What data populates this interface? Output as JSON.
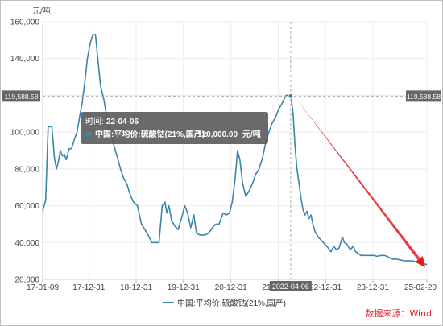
{
  "chart_data": {
    "type": "line",
    "yunit": "元/吨",
    "ylim": [
      20000,
      160000
    ],
    "yticks": [
      "160,000",
      "140,000",
      "120,000",
      "100,000",
      "80,000",
      "60,000",
      "40,000",
      "20,000"
    ],
    "ytick_values": [
      160000,
      140000,
      120000,
      100000,
      80000,
      60000,
      40000,
      20000
    ],
    "xticks": [
      "17-01-09",
      "17-12-31",
      "18-12-31",
      "19-12-31",
      "20-12-31",
      "21-12-31",
      "22-12-31",
      "23-12-31",
      "25-02-20"
    ],
    "xtick_dates": [
      "2017-01-09",
      "2017-12-31",
      "2018-12-31",
      "2019-12-31",
      "2020-12-31",
      "2021-12-31",
      "2022-12-31",
      "2023-12-31",
      "2025-02-20"
    ],
    "grid": true,
    "legend_position": "bottom",
    "series": [
      {
        "name": "中国:平均价:硫酸钴(21%,国产)",
        "color": "#3a86a8",
        "points": [
          [
            "2017-01-09",
            57000
          ],
          [
            "2017-02-01",
            63000
          ],
          [
            "2017-02-20",
            103000
          ],
          [
            "2017-03-20",
            103000
          ],
          [
            "2017-04-10",
            86000
          ],
          [
            "2017-04-25",
            80000
          ],
          [
            "2017-05-10",
            84000
          ],
          [
            "2017-05-25",
            90000
          ],
          [
            "2017-06-10",
            87000
          ],
          [
            "2017-06-25",
            88000
          ],
          [
            "2017-07-10",
            85000
          ],
          [
            "2017-08-01",
            91000
          ],
          [
            "2017-08-20",
            91000
          ],
          [
            "2017-09-10",
            96000
          ],
          [
            "2017-10-01",
            100000
          ],
          [
            "2017-10-20",
            108000
          ],
          [
            "2017-11-10",
            116000
          ],
          [
            "2017-12-01",
            128000
          ],
          [
            "2017-12-20",
            140000
          ],
          [
            "2018-01-10",
            148000
          ],
          [
            "2018-01-31",
            153000
          ],
          [
            "2018-02-20",
            153000
          ],
          [
            "2018-03-10",
            140000
          ],
          [
            "2018-04-01",
            125000
          ],
          [
            "2018-04-25",
            118000
          ],
          [
            "2018-05-15",
            110000
          ],
          [
            "2018-06-05",
            102000
          ],
          [
            "2018-06-25",
            98000
          ],
          [
            "2018-07-15",
            92000
          ],
          [
            "2018-08-10",
            86000
          ],
          [
            "2018-09-01",
            80000
          ],
          [
            "2018-09-25",
            75000
          ],
          [
            "2018-10-20",
            72000
          ],
          [
            "2018-11-15",
            66000
          ],
          [
            "2018-12-10",
            62000
          ],
          [
            "2019-01-10",
            60000
          ],
          [
            "2019-02-10",
            50000
          ],
          [
            "2019-03-10",
            47000
          ],
          [
            "2019-04-10",
            43000
          ],
          [
            "2019-05-01",
            40000
          ],
          [
            "2019-06-01",
            40000
          ],
          [
            "2019-06-25",
            40000
          ],
          [
            "2019-07-20",
            60000
          ],
          [
            "2019-08-10",
            62000
          ],
          [
            "2019-08-25",
            56000
          ],
          [
            "2019-09-10",
            60000
          ],
          [
            "2019-10-01",
            52000
          ],
          [
            "2019-10-25",
            49000
          ],
          [
            "2019-11-20",
            47000
          ],
          [
            "2019-12-15",
            53000
          ],
          [
            "2020-01-10",
            60000
          ],
          [
            "2020-02-01",
            56000
          ],
          [
            "2020-02-25",
            48000
          ],
          [
            "2020-03-20",
            55000
          ],
          [
            "2020-04-10",
            45000
          ],
          [
            "2020-05-10",
            44000
          ],
          [
            "2020-06-10",
            44000
          ],
          [
            "2020-07-10",
            45000
          ],
          [
            "2020-08-10",
            48000
          ],
          [
            "2020-09-05",
            50000
          ],
          [
            "2020-10-01",
            50000
          ],
          [
            "2020-11-01",
            56000
          ],
          [
            "2020-11-25",
            55000
          ],
          [
            "2020-12-20",
            56000
          ],
          [
            "2021-01-10",
            62000
          ],
          [
            "2021-02-01",
            74000
          ],
          [
            "2021-02-20",
            90000
          ],
          [
            "2021-03-10",
            85000
          ],
          [
            "2021-04-01",
            72000
          ],
          [
            "2021-04-25",
            65000
          ],
          [
            "2021-05-20",
            68000
          ],
          [
            "2021-06-15",
            72000
          ],
          [
            "2021-07-10",
            77000
          ],
          [
            "2021-08-05",
            80000
          ],
          [
            "2021-09-01",
            86000
          ],
          [
            "2021-09-25",
            94000
          ],
          [
            "2021-10-20",
            100000
          ],
          [
            "2021-11-15",
            105000
          ],
          [
            "2021-12-10",
            108000
          ],
          [
            "2022-01-01",
            112000
          ],
          [
            "2022-02-01",
            116000
          ],
          [
            "2022-03-01",
            120000
          ],
          [
            "2022-04-06",
            120000
          ],
          [
            "2022-04-25",
            110000
          ],
          [
            "2022-05-10",
            92000
          ],
          [
            "2022-05-25",
            80000
          ],
          [
            "2022-06-10",
            72000
          ],
          [
            "2022-06-25",
            64000
          ],
          [
            "2022-07-10",
            58000
          ],
          [
            "2022-07-25",
            55000
          ],
          [
            "2022-08-10",
            57000
          ],
          [
            "2022-08-25",
            53000
          ],
          [
            "2022-09-10",
            55000
          ],
          [
            "2022-09-25",
            50000
          ],
          [
            "2022-10-10",
            46000
          ],
          [
            "2022-11-05",
            43000
          ],
          [
            "2022-12-01",
            41000
          ],
          [
            "2023-01-10",
            38000
          ],
          [
            "2023-02-10",
            35000
          ],
          [
            "2023-03-05",
            38000
          ],
          [
            "2023-03-25",
            36000
          ],
          [
            "2023-04-15",
            37000
          ],
          [
            "2023-05-10",
            43000
          ],
          [
            "2023-05-25",
            40000
          ],
          [
            "2023-06-15",
            39000
          ],
          [
            "2023-07-10",
            36000
          ],
          [
            "2023-08-01",
            38000
          ],
          [
            "2023-08-20",
            35000
          ],
          [
            "2023-09-10",
            34000
          ],
          [
            "2023-10-01",
            33000
          ],
          [
            "2023-11-01",
            33000
          ],
          [
            "2023-12-01",
            33000
          ],
          [
            "2024-01-10",
            33000
          ],
          [
            "2024-02-01",
            32500
          ],
          [
            "2024-03-01",
            33000
          ],
          [
            "2024-04-01",
            33000
          ],
          [
            "2024-05-01",
            32000
          ],
          [
            "2024-06-01",
            31000
          ],
          [
            "2024-07-01",
            31000
          ],
          [
            "2024-08-01",
            30500
          ],
          [
            "2024-09-01",
            30000
          ],
          [
            "2024-10-01",
            30000
          ],
          [
            "2024-11-01",
            30000
          ],
          [
            "2024-12-01",
            29500
          ],
          [
            "2025-01-01",
            29000
          ],
          [
            "2025-02-20",
            28000
          ]
        ]
      }
    ],
    "crosshair": {
      "date_label": "2022-04-06",
      "value_label": "119,588.58",
      "date": "2022-04-06",
      "value": 119588.58
    },
    "tooltip": {
      "time_label": "时间:",
      "time_value": "22-04-06",
      "series_name": "中国:平均价:硫酸钴(21%,国产):",
      "value_text": "120,000.00",
      "unit": "元/吨"
    },
    "arrow": {
      "color": "#e21b1b",
      "from": [
        "2022-04-06",
        119588.58
      ],
      "to": [
        "2025-02-20",
        26500
      ]
    }
  },
  "source_text": "数据来源：Wind"
}
